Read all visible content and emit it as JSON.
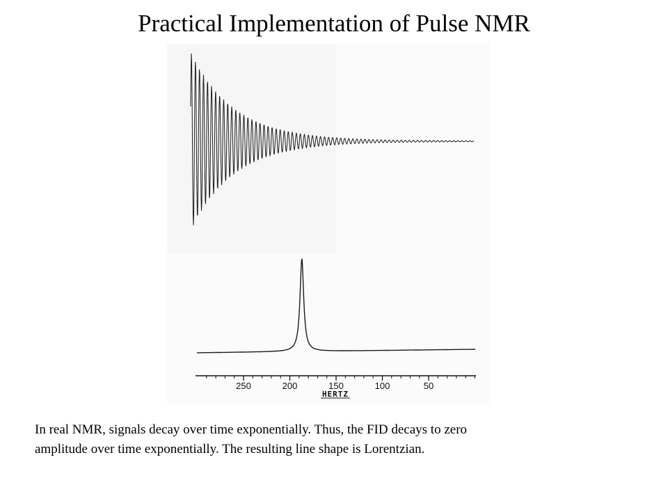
{
  "slide": {
    "title": "Practical Implementation of Pulse NMR",
    "caption_line1": "In real NMR, signals decay over time exponentially. Thus, the FID decays to zero",
    "caption_line2": "amplitude over time exponentially. The resulting line shape is Lorentzian."
  },
  "figure": {
    "fid": {
      "decay": "exponential"
    },
    "spectrum": {
      "line_shape": "Lorentzian",
      "peak_position_hz": 187
    },
    "axis": {
      "unit_label": "HERTZ",
      "tick_labels": [
        "250",
        "200",
        "150",
        "100",
        "50"
      ],
      "tick_values": [
        250,
        200,
        150,
        100,
        50
      ]
    }
  }
}
